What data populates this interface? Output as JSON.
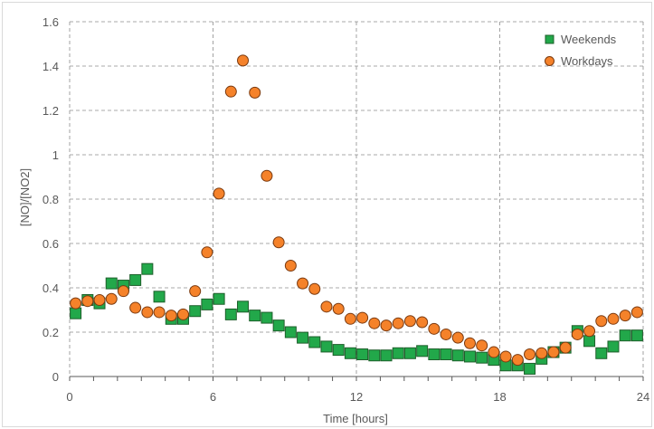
{
  "chart_data": {
    "type": "scatter",
    "title": "",
    "xlabel": "Time [hours]",
    "ylabel": "[NO]/[NO2]",
    "xlim": [
      0,
      24
    ],
    "ylim": [
      0,
      1.6
    ],
    "xticks": [
      0,
      6,
      12,
      18,
      24
    ],
    "xtick_labels": [
      "0",
      "6",
      "12",
      "18",
      "24"
    ],
    "yticks": [
      0,
      0.2,
      0.4,
      0.6,
      0.8,
      1,
      1.2,
      1.4,
      1.6
    ],
    "ytick_labels": [
      "0",
      "0.2",
      "0.4",
      "0.6",
      "0.8",
      "1",
      "1.2",
      "1.4",
      "1.6"
    ],
    "grid": "dashed",
    "legend_position": "top-right",
    "series": [
      {
        "name": "Weekends",
        "marker": "square",
        "color": "#22a84a",
        "edge": "#1e5f2b",
        "x": [
          0.25,
          0.75,
          1.25,
          1.75,
          2.25,
          2.75,
          3.25,
          3.75,
          4.25,
          4.75,
          5.25,
          5.75,
          6.25,
          6.75,
          7.25,
          7.75,
          8.25,
          8.75,
          9.25,
          9.75,
          10.25,
          10.75,
          11.25,
          11.75,
          12.25,
          12.75,
          13.25,
          13.75,
          14.25,
          14.75,
          15.25,
          15.75,
          16.25,
          16.75,
          17.25,
          17.75,
          18.25,
          18.75,
          19.25,
          19.75,
          20.25,
          20.75,
          21.25,
          21.75,
          22.25,
          22.75,
          23.25,
          23.75
        ],
        "y": [
          0.285,
          0.345,
          0.33,
          0.42,
          0.41,
          0.435,
          0.485,
          0.36,
          0.26,
          0.26,
          0.295,
          0.325,
          0.35,
          0.28,
          0.315,
          0.275,
          0.265,
          0.23,
          0.2,
          0.175,
          0.155,
          0.135,
          0.12,
          0.105,
          0.1,
          0.095,
          0.095,
          0.105,
          0.105,
          0.115,
          0.1,
          0.1,
          0.095,
          0.09,
          0.085,
          0.075,
          0.05,
          0.05,
          0.035,
          0.08,
          0.11,
          0.13,
          0.205,
          0.16,
          0.105,
          0.135,
          0.185,
          0.185
        ]
      },
      {
        "name": "Workdays",
        "marker": "circle",
        "color": "#f5822a",
        "edge": "#7a3a10",
        "x": [
          0.25,
          0.75,
          1.25,
          1.75,
          2.25,
          2.75,
          3.25,
          3.75,
          4.25,
          4.75,
          5.25,
          5.75,
          6.25,
          6.75,
          7.25,
          7.75,
          8.25,
          8.75,
          9.25,
          9.75,
          10.25,
          10.75,
          11.25,
          11.75,
          12.25,
          12.75,
          13.25,
          13.75,
          14.25,
          14.75,
          15.25,
          15.75,
          16.25,
          16.75,
          17.25,
          17.75,
          18.25,
          18.75,
          19.25,
          19.75,
          20.25,
          20.75,
          21.25,
          21.75,
          22.25,
          22.75,
          23.25,
          23.75
        ],
        "y": [
          0.33,
          0.34,
          0.345,
          0.35,
          0.385,
          0.31,
          0.29,
          0.29,
          0.275,
          0.28,
          0.385,
          0.56,
          0.825,
          1.285,
          1.425,
          1.28,
          0.905,
          0.605,
          0.5,
          0.42,
          0.395,
          0.315,
          0.305,
          0.26,
          0.265,
          0.24,
          0.23,
          0.24,
          0.25,
          0.245,
          0.215,
          0.19,
          0.175,
          0.15,
          0.14,
          0.11,
          0.09,
          0.075,
          0.1,
          0.105,
          0.11,
          0.13,
          0.19,
          0.205,
          0.25,
          0.26,
          0.275,
          0.29
        ]
      }
    ]
  }
}
